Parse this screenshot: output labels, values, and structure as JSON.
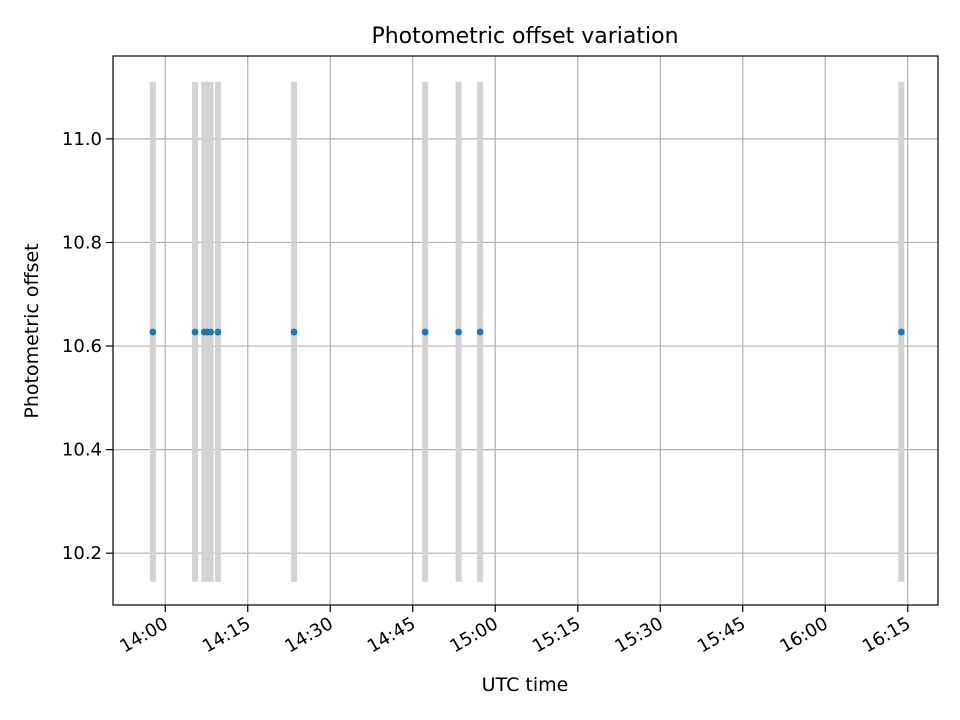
{
  "chart_data": {
    "type": "scatter",
    "title": "Photometric offset variation",
    "xlabel": "UTC time",
    "ylabel": "Photometric offset",
    "x_ticks": [
      {
        "value": "14:00",
        "label": "14:00"
      },
      {
        "value": "14:15",
        "label": "14:15"
      },
      {
        "value": "14:30",
        "label": "14:30"
      },
      {
        "value": "14:45",
        "label": "14:45"
      },
      {
        "value": "15:00",
        "label": "15:00"
      },
      {
        "value": "15:15",
        "label": "15:15"
      },
      {
        "value": "15:30",
        "label": "15:30"
      },
      {
        "value": "15:45",
        "label": "15:45"
      },
      {
        "value": "16:00",
        "label": "16:00"
      },
      {
        "value": "16:15",
        "label": "16:15"
      }
    ],
    "y_ticks": [
      {
        "value": 10.2,
        "label": "10.2"
      },
      {
        "value": 10.4,
        "label": "10.4"
      },
      {
        "value": 10.6,
        "label": "10.6"
      },
      {
        "value": 10.8,
        "label": "10.8"
      },
      {
        "value": 11.0,
        "label": "11.0"
      }
    ],
    "xlim": [
      "13:50:30",
      "16:20:30"
    ],
    "ylim": [
      10.1,
      11.16
    ],
    "grid": true,
    "points": [
      {
        "x": "13:57:45",
        "y": 10.627,
        "yerr_low": 10.145,
        "yerr_high": 11.11
      },
      {
        "x": "14:05:25",
        "y": 10.627,
        "yerr_low": 10.145,
        "yerr_high": 11.11
      },
      {
        "x": "14:07:05",
        "y": 10.627,
        "yerr_low": 10.145,
        "yerr_high": 11.11
      },
      {
        "x": "14:07:40",
        "y": 10.627,
        "yerr_low": 10.145,
        "yerr_high": 11.11
      },
      {
        "x": "14:08:15",
        "y": 10.627,
        "yerr_low": 10.145,
        "yerr_high": 11.11
      },
      {
        "x": "14:09:35",
        "y": 10.627,
        "yerr_low": 10.145,
        "yerr_high": 11.11
      },
      {
        "x": "14:23:25",
        "y": 10.627,
        "yerr_low": 10.145,
        "yerr_high": 11.11
      },
      {
        "x": "14:47:15",
        "y": 10.627,
        "yerr_low": 10.145,
        "yerr_high": 11.11
      },
      {
        "x": "14:53:20",
        "y": 10.627,
        "yerr_low": 10.145,
        "yerr_high": 11.11
      },
      {
        "x": "14:57:15",
        "y": 10.627,
        "yerr_low": 10.145,
        "yerr_high": 11.11
      },
      {
        "x": "16:13:50",
        "y": 10.627,
        "yerr_low": 10.145,
        "yerr_high": 11.11
      }
    ],
    "colors": {
      "point": "#1f77b4",
      "errorbar": "#d3d3d3",
      "grid": "#b0b0b0",
      "axes": "#000000"
    }
  }
}
